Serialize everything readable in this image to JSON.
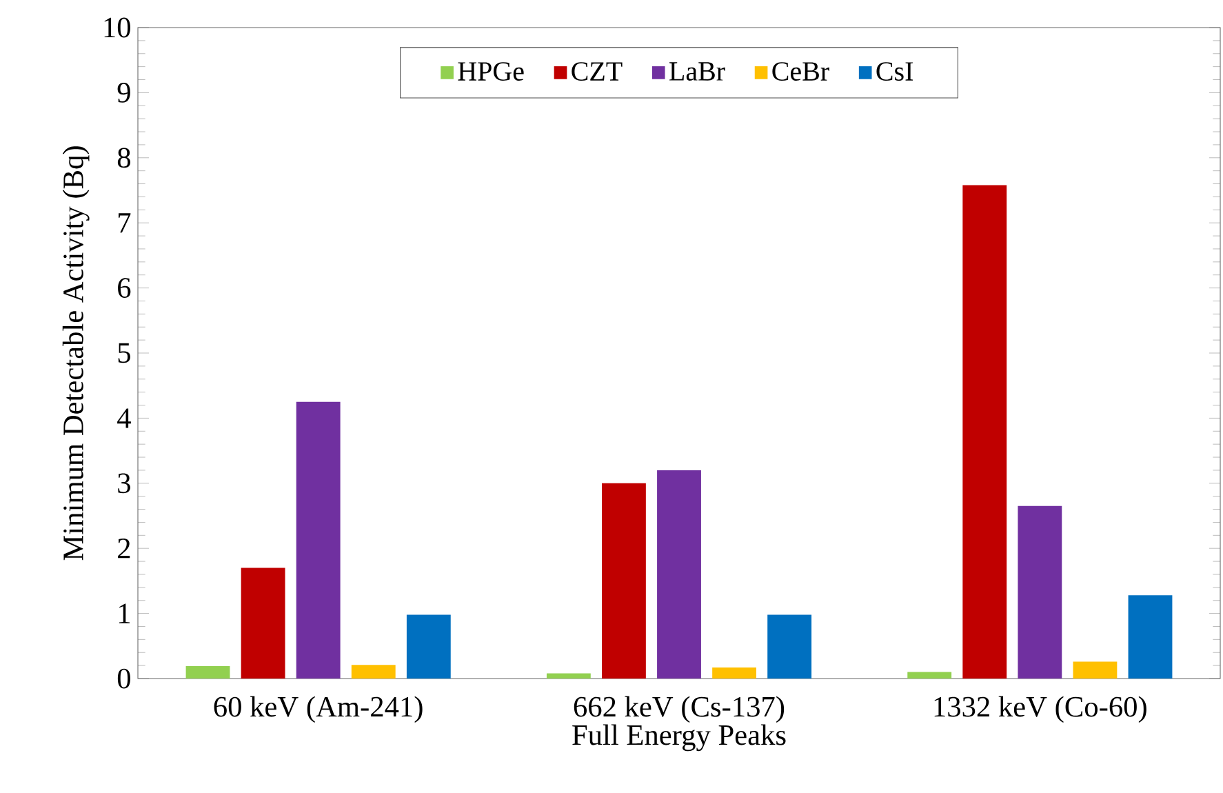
{
  "chart_data": {
    "type": "bar",
    "xlabel": "Full Energy Peaks",
    "ylabel": "Minimum Detectable Activity (Bq)",
    "categories": [
      "60 keV (Am-241)",
      "662 keV (Cs-137)",
      "1332 keV (Co-60)"
    ],
    "series": [
      {
        "name": "HPGe",
        "color": "#92d050",
        "values": [
          0.19,
          0.08,
          0.1
        ]
      },
      {
        "name": "CZT",
        "color": "#c00000",
        "values": [
          1.7,
          3.0,
          7.58
        ]
      },
      {
        "name": "LaBr",
        "color": "#7030a0",
        "values": [
          4.25,
          3.2,
          2.65
        ]
      },
      {
        "name": "CeBr",
        "color": "#ffc000",
        "values": [
          0.21,
          0.17,
          0.26
        ]
      },
      {
        "name": "CsI",
        "color": "#0070c0",
        "values": [
          0.98,
          0.98,
          1.28
        ]
      }
    ],
    "ylim": [
      0,
      10
    ],
    "yticks": [
      0,
      1,
      2,
      3,
      4,
      5,
      6,
      7,
      8,
      9,
      10
    ],
    "legend": "top",
    "grid": false
  }
}
